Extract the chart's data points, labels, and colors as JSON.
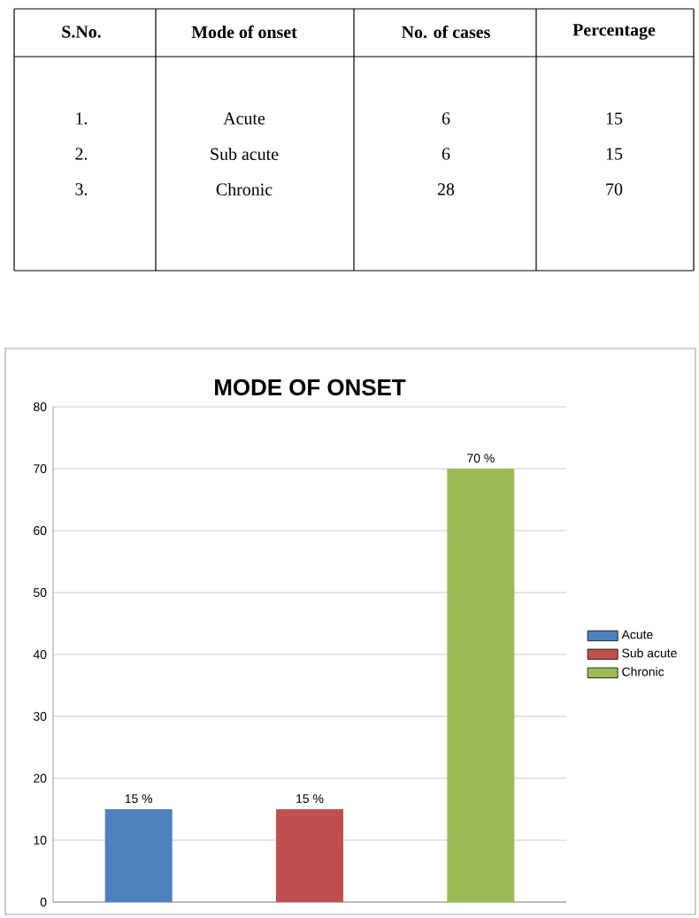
{
  "chart_data": [
    {
      "type": "other",
      "annotations": [
        "S.No.",
        "Mode of onset",
        "No. of cases",
        "Percentage",
        "1.",
        "Acute",
        "6",
        "15",
        "2.",
        "Sub acute",
        "6",
        "15",
        "3.",
        "Chronic",
        "28",
        "70"
      ]
    },
    {
      "type": "bar",
      "title": "MODE OF ONSET",
      "categories": [
        null,
        null,
        null
      ],
      "series": [
        {
          "name": "Acute",
          "color": "#4f81bd",
          "values": [
            15,
            null,
            null
          ],
          "value_labels": [
            "15 %",
            null,
            null
          ]
        },
        {
          "name": "Sub acute",
          "color": "#c0504d",
          "values": [
            null,
            15,
            null
          ],
          "value_labels": [
            null,
            "15 %",
            null
          ]
        },
        {
          "name": "Chronic",
          "color": "#9bbb59",
          "values": [
            null,
            null,
            70
          ],
          "value_labels": [
            null,
            null,
            "70 %"
          ]
        }
      ],
      "ylim": [
        0,
        80
      ],
      "yticks": [
        0,
        10,
        20,
        30,
        40,
        50,
        60,
        70,
        80
      ],
      "grid": "y",
      "legend": "right"
    }
  ]
}
